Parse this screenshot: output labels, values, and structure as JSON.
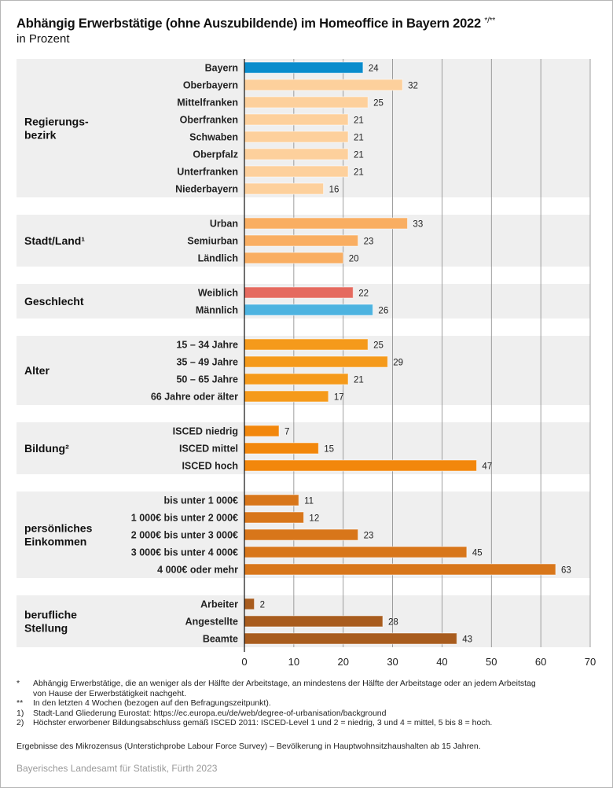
{
  "title": "Abhängig Erwerbstätige (ohne Auszubildende) im Homeoffice in Bayern 2022",
  "title_marks": "*/**",
  "subtitle": "in Prozent",
  "chart_data": {
    "type": "bar",
    "orientation": "horizontal",
    "xlim": [
      0,
      70
    ],
    "xticks": [
      0,
      10,
      20,
      30,
      40,
      50,
      60,
      70
    ],
    "grid": true,
    "groups": [
      {
        "label": "Regierungs-\nbezirk",
        "items": [
          {
            "label": "Bayern",
            "value": 24,
            "color": "#0a8ccc"
          },
          {
            "label": "Oberbayern",
            "value": 32,
            "color": "#fdd09c"
          },
          {
            "label": "Mittelfranken",
            "value": 25,
            "color": "#fdd09c"
          },
          {
            "label": "Oberfranken",
            "value": 21,
            "color": "#fdd09c"
          },
          {
            "label": "Schwaben",
            "value": 21,
            "color": "#fdd09c"
          },
          {
            "label": "Oberpfalz",
            "value": 21,
            "color": "#fdd09c"
          },
          {
            "label": "Unterfranken",
            "value": 21,
            "color": "#fdd09c"
          },
          {
            "label": "Niederbayern",
            "value": 16,
            "color": "#fdd09c"
          }
        ]
      },
      {
        "label": "Stadt/Land¹",
        "items": [
          {
            "label": "Urban",
            "value": 33,
            "color": "#f9ae62"
          },
          {
            "label": "Semiurban",
            "value": 23,
            "color": "#f9ae62"
          },
          {
            "label": "Ländlich",
            "value": 20,
            "color": "#f9ae62"
          }
        ]
      },
      {
        "label": "Geschlecht",
        "items": [
          {
            "label": "Weiblich",
            "value": 22,
            "color": "#e56a5f"
          },
          {
            "label": "Männlich",
            "value": 26,
            "color": "#4db3e0"
          }
        ]
      },
      {
        "label": "Alter",
        "items": [
          {
            "label": "15 – 34 Jahre",
            "value": 25,
            "color": "#f59a1b"
          },
          {
            "label": "35 – 49 Jahre",
            "value": 29,
            "color": "#f59a1b"
          },
          {
            "label": "50 – 65 Jahre",
            "value": 21,
            "color": "#f59a1b"
          },
          {
            "label": "66 Jahre oder älter",
            "value": 17,
            "color": "#f59a1b"
          }
        ]
      },
      {
        "label": "Bildung²",
        "items": [
          {
            "label": "ISCED niedrig",
            "value": 7,
            "color": "#f2870c"
          },
          {
            "label": "ISCED mittel",
            "value": 15,
            "color": "#f2870c"
          },
          {
            "label": "ISCED hoch",
            "value": 47,
            "color": "#f2870c"
          }
        ]
      },
      {
        "label": "persönliches\nEinkommen",
        "items": [
          {
            "label": "bis unter 1 000€",
            "value": 11,
            "color": "#d8761a"
          },
          {
            "label": "1 000€ bis unter 2 000€",
            "value": 12,
            "color": "#d8761a"
          },
          {
            "label": "2 000€ bis unter 3 000€",
            "value": 23,
            "color": "#d8761a"
          },
          {
            "label": "3 000€ bis unter 4 000€",
            "value": 45,
            "color": "#d8761a"
          },
          {
            "label": "4 000€ oder mehr",
            "value": 63,
            "color": "#d8761a"
          }
        ]
      },
      {
        "label": "berufliche\nStellung",
        "items": [
          {
            "label": "Arbeiter",
            "value": 2,
            "color": "#a85c1e"
          },
          {
            "label": "Angestellte",
            "value": 28,
            "color": "#a85c1e"
          },
          {
            "label": "Beamte",
            "value": 43,
            "color": "#a85c1e"
          }
        ]
      }
    ]
  },
  "footnotes": [
    {
      "mark": "*",
      "text": "Abhängig Erwerbstätige, die an weniger als der Hälfte der Arbeitstage, an mindestens der Hälfte der Arbeitstage oder an jedem Arbeitstag",
      "text2": "von Hause der Erwerbstätigkeit nachgeht."
    },
    {
      "mark": "**",
      "text": "In den letzten 4 Wochen (bezogen auf den Befragungszeitpunkt)."
    },
    {
      "mark": "1)",
      "text": "Stadt-Land Gliederung Eurostat: https://ec.europa.eu/de/web/degree-of-urbanisation/background"
    },
    {
      "mark": "2)",
      "text": "Höchster erworbener Bildungsabschluss gemäß ISCED 2011: ISCED-Level 1 und 2 = niedrig, 3 und 4 = mittel, 5 bis 8 = hoch."
    }
  ],
  "survey_note": "Ergebnisse des Mikrozensus (Unterstichprobe Labour Force Survey) – Bevölkerung in Hauptwohnsitzhaushalten ab 15 Jahren.",
  "source": "Bayerisches Landesamt für Statistik, Fürth 2023"
}
